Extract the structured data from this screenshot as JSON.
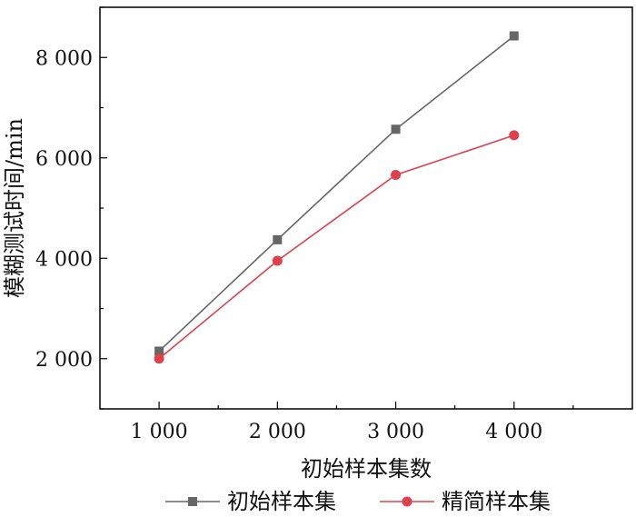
{
  "chart_data": {
    "type": "line",
    "title": "",
    "xlabel": "初始样本集数",
    "ylabel": "模糊测试时间/min",
    "x": [
      1000,
      2000,
      3000,
      4000
    ],
    "x_tick_labels": [
      "1 000",
      "2 000",
      "3 000",
      "4 000"
    ],
    "y_ticks": [
      2000,
      4000,
      6000,
      8000
    ],
    "y_tick_labels": [
      "2 000",
      "4 000",
      "6 000",
      "8 000"
    ],
    "xlim": [
      500,
      5000
    ],
    "ylim": [
      1000,
      9000
    ],
    "grid": false,
    "legend_position": "bottom",
    "series": [
      {
        "name": "初始样本集",
        "values": [
          2150,
          4370,
          6570,
          8430
        ],
        "color": "#666666",
        "marker": "square"
      },
      {
        "name": "精简样本集",
        "values": [
          2000,
          3950,
          5660,
          6450
        ],
        "color": "#e0404b",
        "marker": "circle"
      }
    ]
  }
}
